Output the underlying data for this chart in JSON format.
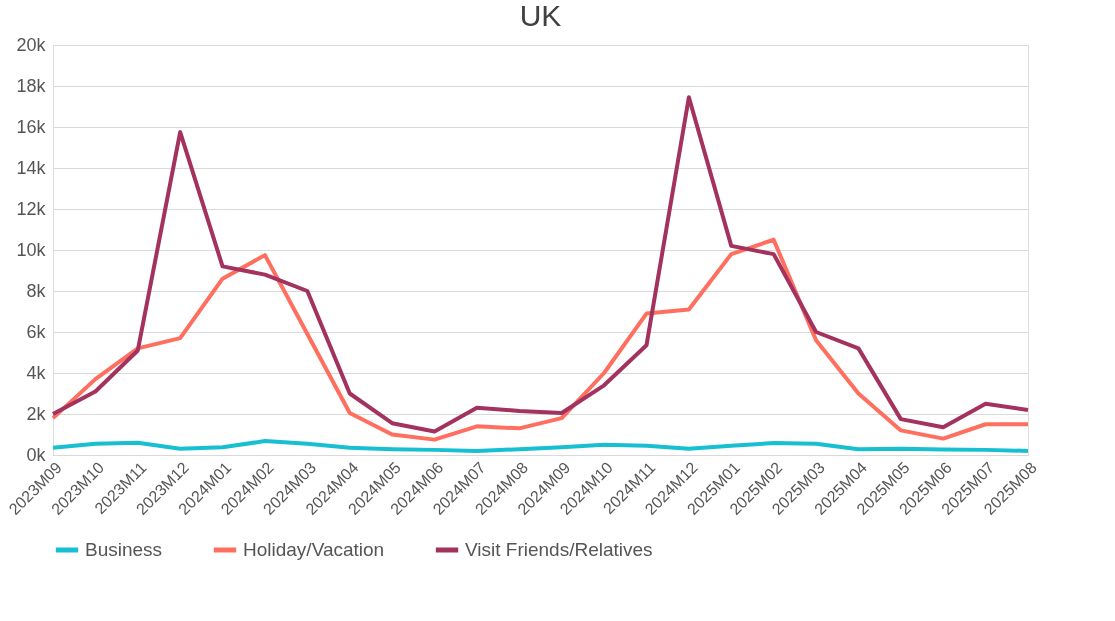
{
  "chart_data": {
    "type": "line",
    "title": "UK",
    "categories": [
      "2023M09",
      "2023M10",
      "2023M11",
      "2023M12",
      "2024M01",
      "2024M02",
      "2024M03",
      "2024M04",
      "2024M05",
      "2024M06",
      "2024M07",
      "2024M08",
      "2024M09",
      "2024M10",
      "2024M11",
      "2024M12",
      "2025M01",
      "2025M02",
      "2025M03",
      "2025M04",
      "2025M05",
      "2025M06",
      "2025M07",
      "2025M08"
    ],
    "series": [
      {
        "name": "Business",
        "color": "#17bfd0",
        "values": [
          350,
          550,
          600,
          300,
          380,
          680,
          550,
          350,
          280,
          250,
          200,
          280,
          380,
          500,
          450,
          300,
          450,
          580,
          550,
          280,
          300,
          270,
          250,
          200
        ]
      },
      {
        "name": "Holiday/Vacation",
        "color": "#ff6f5f",
        "values": [
          1800,
          3700,
          5200,
          5700,
          8600,
          9750,
          5900,
          2050,
          1000,
          750,
          1400,
          1300,
          1800,
          4000,
          6900,
          7100,
          9800,
          10500,
          5600,
          3000,
          1200,
          800,
          1500,
          1500
        ]
      },
      {
        "name": "Visit Friends/Relatives",
        "color": "#a3325e",
        "values": [
          2000,
          3100,
          5100,
          15750,
          9200,
          8800,
          8000,
          3000,
          1550,
          1150,
          2300,
          2150,
          2050,
          3400,
          5350,
          17450,
          10200,
          9800,
          6000,
          5200,
          1750,
          1350,
          2500,
          2200
        ]
      }
    ],
    "ylim": [
      0,
      20000
    ],
    "yticks": [
      {
        "value": 0,
        "label": "0k"
      },
      {
        "value": 2000,
        "label": "2k"
      },
      {
        "value": 4000,
        "label": "4k"
      },
      {
        "value": 6000,
        "label": "6k"
      },
      {
        "value": 8000,
        "label": "8k"
      },
      {
        "value": 10000,
        "label": "10k"
      },
      {
        "value": 12000,
        "label": "12k"
      },
      {
        "value": 14000,
        "label": "14k"
      },
      {
        "value": 16000,
        "label": "16k"
      },
      {
        "value": 18000,
        "label": "18k"
      },
      {
        "value": 20000,
        "label": "20k"
      }
    ],
    "grid": "y",
    "legend": "bottom",
    "marker": "none",
    "line_style": "solid"
  }
}
